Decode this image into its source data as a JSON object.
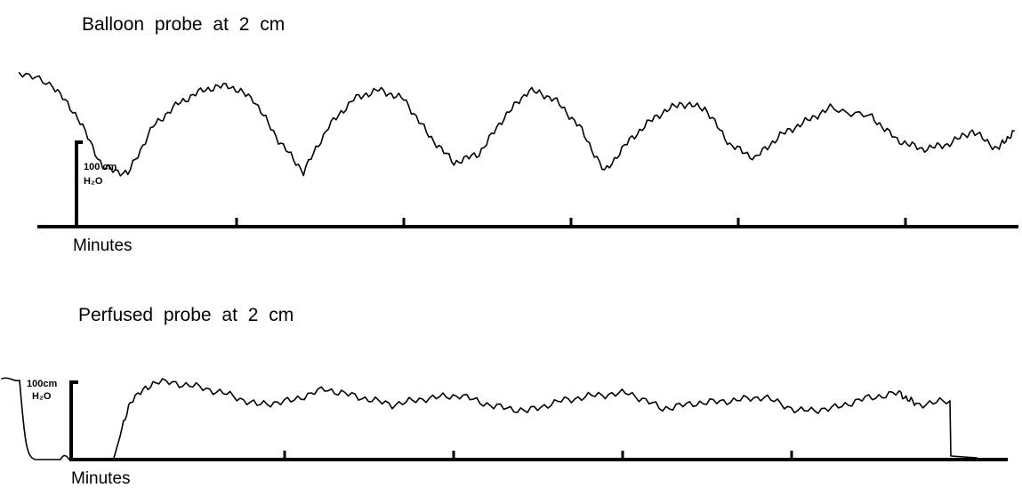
{
  "chart_data": [
    {
      "type": "line",
      "title": "Balloon probe at 2 cm",
      "xlabel": "Minutes",
      "scale_bar_label": [
        "100 cm",
        "H₂O"
      ],
      "scale_bar_value_cmH2O": 100,
      "xlim": [
        0,
        5.6
      ],
      "ylim": [
        0,
        190
      ],
      "tick_positions_min": [
        0,
        1,
        2,
        3,
        4,
        5
      ],
      "series": [
        {
          "x": [
            -0.3,
            -0.1,
            0.05,
            0.2,
            0.35,
            0.5,
            0.65,
            0.8,
            0.95,
            1.1,
            1.25,
            1.4,
            1.55,
            1.7,
            1.85,
            2.0,
            2.15,
            2.3,
            2.45,
            2.6,
            2.75,
            2.9,
            3.05,
            3.2,
            3.35,
            3.5,
            3.65,
            3.8,
            3.95,
            4.1,
            4.25,
            4.4,
            4.55,
            4.8,
            4.95,
            5.1,
            5.25,
            5.4,
            5.55,
            5.65
          ],
          "y": [
            170,
            155,
            120,
            65,
            58,
            110,
            135,
            150,
            155,
            140,
            95,
            60,
            110,
            140,
            150,
            140,
            100,
            70,
            80,
            120,
            150,
            140,
            110,
            60,
            95,
            120,
            135,
            130,
            90,
            75,
            100,
            115,
            130,
            120,
            95,
            85,
            90,
            105,
            85,
            105
          ]
        }
      ]
    },
    {
      "type": "line",
      "title": "Perfused probe at 2 cm",
      "xlabel": "Minutes",
      "scale_bar_label": [
        "100cm",
        "H₂O"
      ],
      "scale_bar_value_cmH2O": 100,
      "xlim": [
        0,
        5.6
      ],
      "ylim": [
        0,
        110
      ],
      "tick_positions_min": [
        0,
        1,
        2,
        3,
        4
      ],
      "series": [
        {
          "x": [
            0.25,
            0.35,
            0.5,
            0.7,
            0.9,
            1.1,
            1.3,
            1.5,
            1.7,
            1.9,
            2.1,
            2.3,
            2.5,
            2.7,
            2.9,
            3.1,
            3.3,
            3.5,
            3.7,
            3.9,
            4.1,
            4.3,
            4.5,
            4.7,
            4.9,
            5.0,
            5.2
          ],
          "y": [
            0,
            75,
            100,
            95,
            85,
            70,
            75,
            90,
            80,
            70,
            78,
            82,
            68,
            62,
            75,
            82,
            85,
            65,
            72,
            75,
            80,
            62,
            65,
            78,
            85,
            70,
            75
          ]
        }
      ]
    }
  ]
}
